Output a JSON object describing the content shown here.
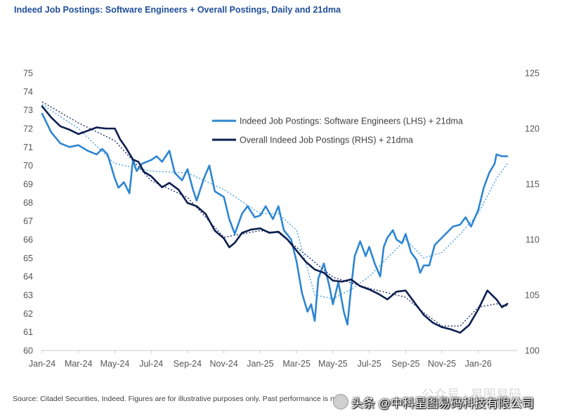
{
  "chart_data": {
    "type": "line",
    "title": "Indeed Job Postings: Software Engineers + Overall Postings, Daily and 21dma",
    "x_ticks": [
      "Jan-24",
      "Mar-24",
      "May-24",
      "Jul-24",
      "Sep-24",
      "Nov-24",
      "Jan-25",
      "Mar-25",
      "May-25",
      "Jul-25",
      "Sep-25",
      "Nov-25",
      "Jan-26"
    ],
    "left_axis": {
      "ticks": [
        60,
        61,
        62,
        63,
        64,
        65,
        66,
        67,
        68,
        69,
        70,
        71,
        72,
        73,
        74,
        75
      ],
      "ylim": [
        60,
        75
      ]
    },
    "right_axis": {
      "ticks": [
        100,
        105,
        110,
        115,
        120,
        125
      ],
      "ylim": [
        100,
        125
      ]
    },
    "x_range": [
      0,
      25.9
    ],
    "series": [
      {
        "name": "Indeed Job Postings: Software Engineers (LHS) + 21dma",
        "axis": "left",
        "color": "#2e86d1",
        "ma_color": "#4aa2e0",
        "x": [
          0,
          0.5,
          1,
          1.5,
          2,
          2.5,
          3,
          3.3,
          3.6,
          4,
          4.2,
          4.5,
          4.8,
          5,
          5.2,
          5.5,
          6,
          6.3,
          6.6,
          7,
          7.3,
          7.7,
          8,
          8.3,
          8.5,
          8.9,
          9.2,
          9.5,
          10,
          10.3,
          10.6,
          11,
          11.3,
          11.7,
          12,
          12.3,
          12.7,
          13,
          13.3,
          13.7,
          14,
          14.3,
          14.6,
          14.8,
          15,
          15.2,
          15.5,
          15.8,
          16,
          16.3,
          16.6,
          16.8,
          17,
          17.2,
          17.5,
          17.8,
          18,
          18.3,
          18.6,
          18.8,
          19,
          19.3,
          19.5,
          19.8,
          20,
          20.3,
          20.6,
          20.8,
          21,
          21.3,
          21.6,
          22,
          22.3,
          22.6,
          23,
          23.3,
          23.6,
          24,
          24.3,
          24.6,
          24.9,
          25,
          25.3,
          25.6
        ],
        "values": [
          72.8,
          71.8,
          71.2,
          71.0,
          71.1,
          70.8,
          70.6,
          70.9,
          70.6,
          69.3,
          68.8,
          69.1,
          68.5,
          70.3,
          69.7,
          70.1,
          70.3,
          70.5,
          70.2,
          70.8,
          69.6,
          69.2,
          69.8,
          68.7,
          68.1,
          69.3,
          70.0,
          68.6,
          68.3,
          67.1,
          66.3,
          67.4,
          67.8,
          67.2,
          67.3,
          67.8,
          67.1,
          67.8,
          66.5,
          66.0,
          64.8,
          63.1,
          62.1,
          62.5,
          61.6,
          63.9,
          64.7,
          63.5,
          62.5,
          63.7,
          62.1,
          61.4,
          63.4,
          65.1,
          65.9,
          65.1,
          65.6,
          64.7,
          64.0,
          65.6,
          66.1,
          66.5,
          66.0,
          65.8,
          66.3,
          65.3,
          64.9,
          64.2,
          64.6,
          64.6,
          65.7,
          66.1,
          66.4,
          66.7,
          66.8,
          67.2,
          66.7,
          67.6,
          68.8,
          69.6,
          70.1,
          70.6,
          70.5,
          70.5
        ],
        "ma_x": [
          0,
          2,
          4,
          6,
          8,
          10,
          12,
          13,
          14,
          15,
          16,
          17,
          18,
          19,
          20,
          21,
          22,
          23,
          24,
          25,
          25.6
        ],
        "ma_values": [
          73.3,
          72.0,
          70.1,
          69.7,
          69.6,
          68.7,
          67.4,
          67.4,
          66.5,
          63.0,
          62.8,
          63.3,
          64.0,
          65.0,
          66.0,
          65.0,
          65.3,
          66.3,
          67.4,
          69.3,
          70.1
        ]
      },
      {
        "name": "Overall Indeed Job Postings (RHS) + 21dma",
        "axis": "right",
        "color": "#0d1e4f",
        "ma_color": "#1a2f6b",
        "x": [
          0,
          0.5,
          1,
          1.5,
          2,
          2.5,
          3,
          3.5,
          4,
          4.3,
          4.6,
          5,
          5.3,
          5.6,
          6,
          6.3,
          6.6,
          7,
          7.5,
          8,
          8.5,
          9,
          9.5,
          10,
          10.3,
          10.6,
          11,
          11.5,
          12,
          12.5,
          13,
          13.5,
          14,
          14.5,
          15,
          15.5,
          16,
          16.5,
          17,
          17.5,
          18,
          18.5,
          19,
          19.5,
          20,
          20.5,
          21,
          21.5,
          22,
          22.5,
          23,
          23.5,
          24,
          24.5,
          25,
          25.3,
          25.6
        ],
        "values": [
          122.0,
          121.0,
          120.2,
          119.9,
          119.5,
          119.8,
          120.1,
          120.0,
          120.0,
          119.0,
          118.3,
          117.2,
          117.0,
          116.1,
          115.7,
          115.2,
          114.7,
          115.1,
          114.5,
          113.3,
          113.0,
          112.3,
          110.8,
          110.1,
          109.3,
          109.7,
          110.6,
          110.9,
          111.0,
          110.6,
          110.7,
          110.0,
          109.0,
          108.0,
          107.3,
          107.0,
          106.3,
          106.2,
          106.4,
          105.8,
          105.5,
          105.1,
          104.6,
          105.3,
          105.4,
          104.3,
          103.2,
          102.5,
          102.1,
          101.9,
          101.6,
          102.3,
          103.7,
          105.4,
          104.6,
          103.9,
          104.2
        ],
        "ma_x": [
          0,
          2,
          4,
          6,
          8,
          10,
          12,
          13,
          14,
          16,
          18,
          19,
          20,
          21,
          22,
          23,
          24,
          25,
          25.6
        ],
        "ma_values": [
          122.4,
          120.5,
          118.9,
          115.3,
          113.8,
          110.2,
          110.8,
          110.6,
          109.3,
          106.6,
          105.6,
          105.2,
          104.8,
          103.4,
          102.2,
          102.2,
          103.9,
          104.2,
          104.0
        ]
      }
    ],
    "legend": {
      "position": "top-center",
      "entries": [
        "Indeed Job Postings: Software Engineers (LHS) + 21dma",
        "Overall Indeed Job Postings (RHS) + 21dma"
      ]
    },
    "grid": false
  },
  "footnote": "Source: Citadel Securities, Indeed. Figures are for illustrative purposes only. Past performance is not indicative of future results.",
  "watermark": {
    "text": "头条 @中科星图易码科技有限公司",
    "faint_text": "公众号 · 星图易码"
  }
}
